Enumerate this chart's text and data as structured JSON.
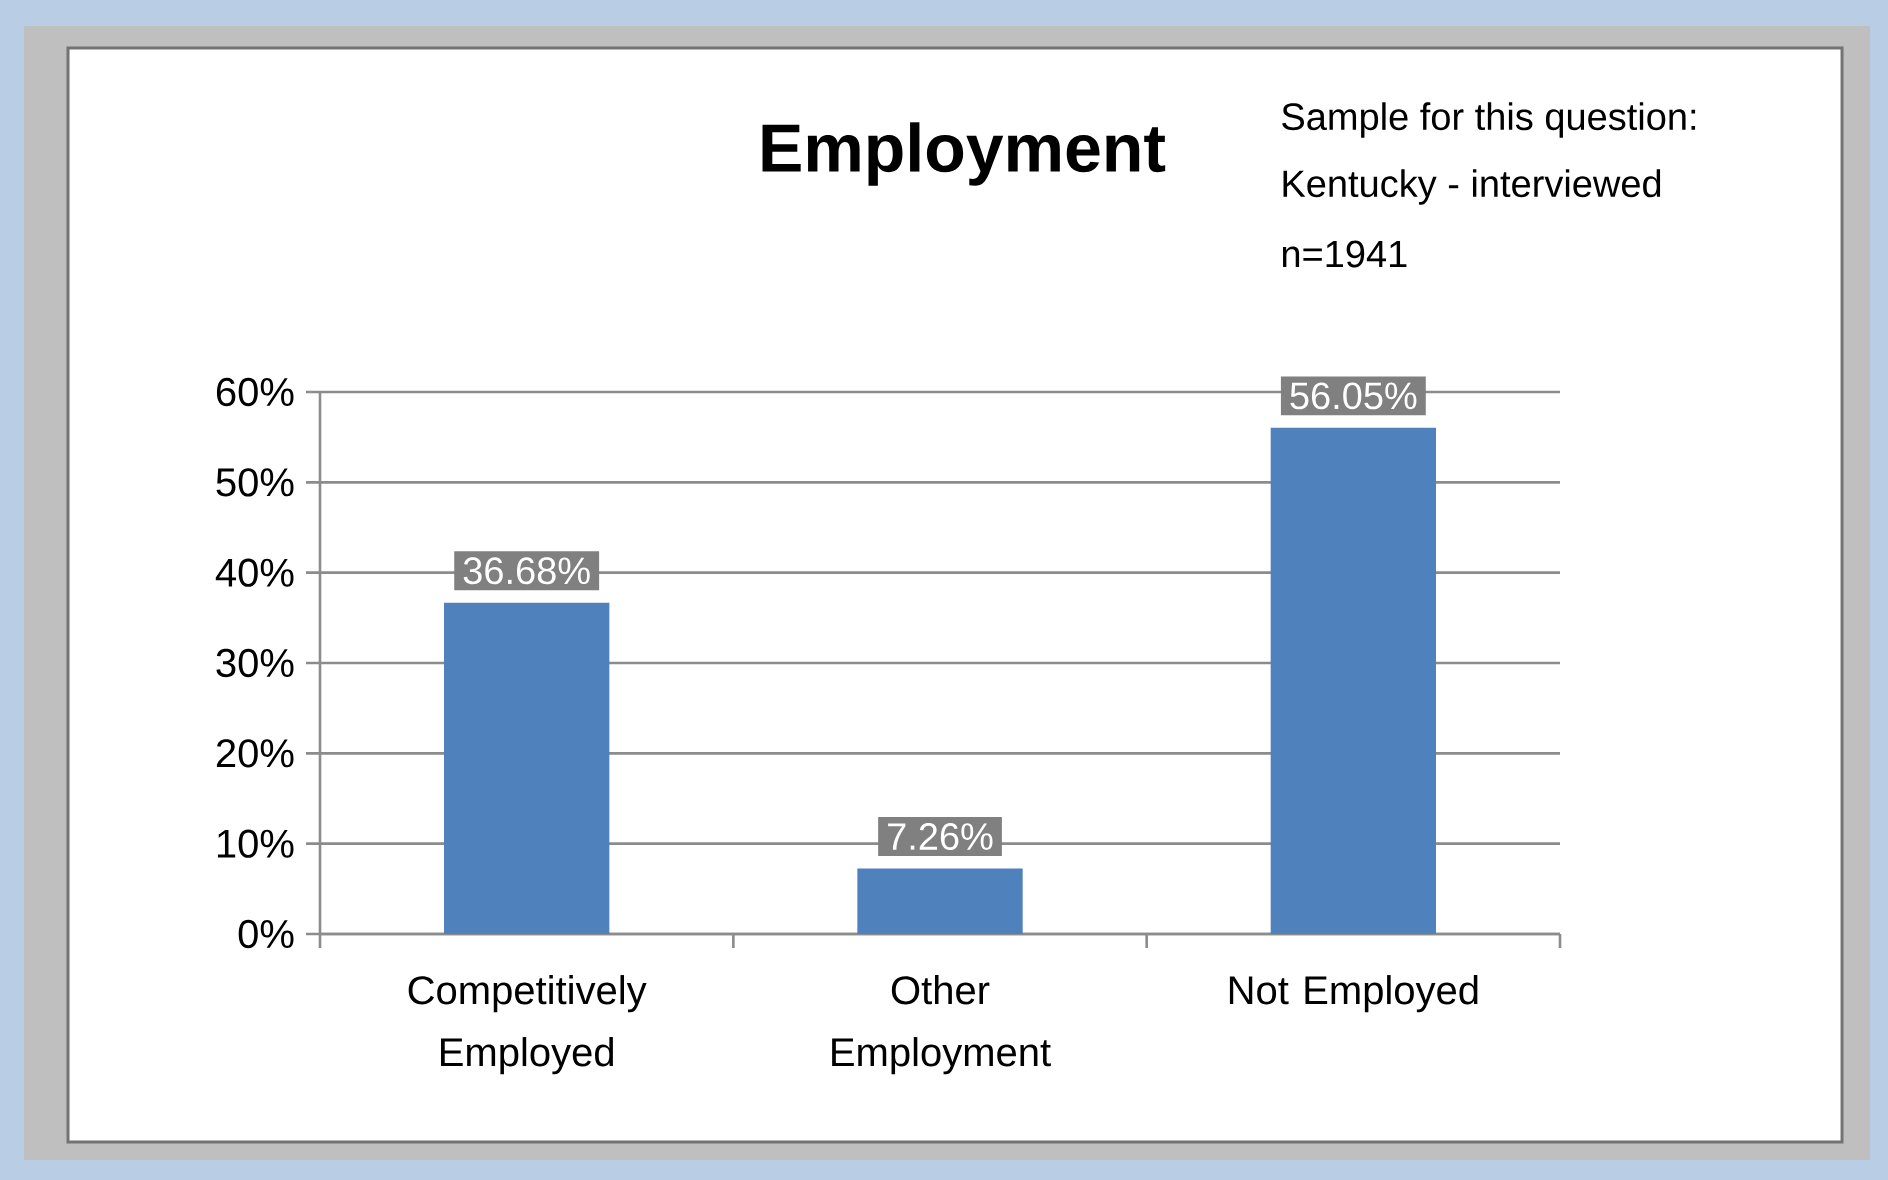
{
  "chart_data": {
    "type": "bar",
    "title": "Employment",
    "annotations": [
      "Sample for this question:",
      "Kentucky - interviewed",
      "n=1941"
    ],
    "categories": [
      "Competitively Employed",
      "Other Employment",
      "Not Employed"
    ],
    "values": [
      36.68,
      7.26,
      56.05
    ],
    "value_labels": [
      "36.68%",
      "7.26%",
      "56.05%"
    ],
    "color": "#4f81bd",
    "ylim": [
      0,
      60
    ],
    "yticks": [
      {
        "value": 0,
        "label": "0%"
      },
      {
        "value": 10,
        "label": "10%"
      },
      {
        "value": 20,
        "label": "20%"
      },
      {
        "value": 30,
        "label": "30%"
      },
      {
        "value": 40,
        "label": "40%"
      },
      {
        "value": 50,
        "label": "50%"
      },
      {
        "value": 60,
        "label": "60%"
      }
    ],
    "grid": "y"
  }
}
